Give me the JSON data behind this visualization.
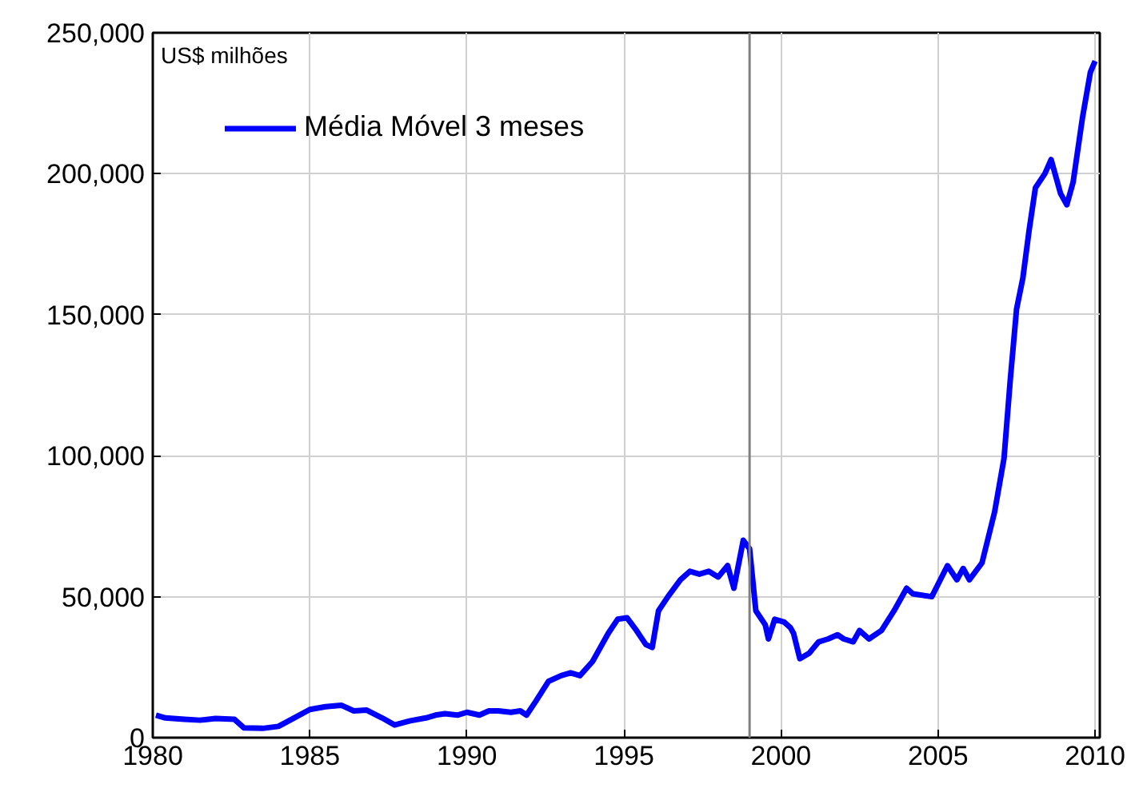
{
  "chart_data": {
    "type": "line",
    "annotations": [
      "US$ milhões"
    ],
    "series": [
      {
        "name": "Média Móvel 3 meses",
        "color": "#0000ff",
        "x": [
          1980.1,
          1980.4,
          1981.0,
          1981.5,
          1982.0,
          1982.6,
          1982.9,
          1983.5,
          1984.0,
          1984.5,
          1985.0,
          1985.5,
          1986.0,
          1986.4,
          1986.8,
          1987.3,
          1987.7,
          1988.2,
          1988.7,
          1989.0,
          1989.3,
          1989.7,
          1990.0,
          1990.4,
          1990.7,
          1991.0,
          1991.4,
          1991.7,
          1991.9,
          1992.2,
          1992.6,
          1993.0,
          1993.3,
          1993.6,
          1994.0,
          1994.5,
          1994.8,
          1995.1,
          1995.4,
          1995.7,
          1995.9,
          1996.1,
          1996.4,
          1996.8,
          1997.1,
          1997.4,
          1997.7,
          1998.0,
          1998.3,
          1998.5,
          1998.8,
          1999.0,
          1999.2,
          1999.5,
          1999.6,
          1999.8,
          2000.1,
          2000.3,
          2000.4,
          2000.6,
          2000.9,
          2001.2,
          2001.5,
          2001.8,
          2002.0,
          2002.3,
          2002.5,
          2002.8,
          2003.2,
          2003.6,
          2004.0,
          2004.2,
          2004.8,
          2005.3,
          2005.6,
          2005.8,
          2006.0,
          2006.4,
          2006.8,
          2007.1,
          2007.3,
          2007.5,
          2007.7,
          2007.9,
          2008.1,
          2008.4,
          2008.6,
          2008.9,
          2009.1,
          2009.3,
          2009.6,
          2009.85,
          2010.0
        ],
        "values": [
          8000,
          7000,
          6500,
          6200,
          6800,
          6500,
          3500,
          3300,
          4000,
          7000,
          10000,
          11000,
          11500,
          9500,
          9800,
          7000,
          4500,
          6000,
          7000,
          8000,
          8500,
          8000,
          9000,
          8000,
          9500,
          9500,
          9000,
          9500,
          8000,
          13000,
          20000,
          22000,
          23000,
          22000,
          27000,
          37000,
          42000,
          42500,
          38000,
          33000,
          32000,
          45000,
          50000,
          56000,
          59000,
          58000,
          59000,
          57000,
          61000,
          53000,
          70000,
          67000,
          45000,
          40000,
          35000,
          42000,
          41000,
          39000,
          37000,
          28000,
          30000,
          34000,
          35000,
          36500,
          35000,
          34000,
          38000,
          35000,
          38000,
          45000,
          53000,
          51000,
          50000,
          61000,
          56000,
          60000,
          56000,
          62000,
          80000,
          99000,
          127000,
          152000,
          163000,
          180000,
          195000,
          200000,
          205000,
          193000,
          189000,
          197000,
          220000,
          236000,
          240000
        ]
      }
    ],
    "xlim": [
      1980,
      2010.15
    ],
    "ylim": [
      0,
      250000
    ],
    "xticks": [
      1980,
      1985,
      1990,
      1995,
      2000,
      2005,
      2010
    ],
    "yticks": [
      0,
      {
        "value": 50000,
        "label": "50,000"
      },
      {
        "value": 100000,
        "label": "100,000"
      },
      {
        "value": 150000,
        "label": "150,000"
      },
      {
        "value": 200000,
        "label": "200,000"
      },
      {
        "value": 250000,
        "label": "250,000"
      }
    ],
    "ref_lines": [
      {
        "axis": "x",
        "value": 1999,
        "label": null,
        "color": "#808080"
      }
    ],
    "grid": true,
    "legend": "top left",
    "line_style": "solid",
    "marker": "none"
  }
}
